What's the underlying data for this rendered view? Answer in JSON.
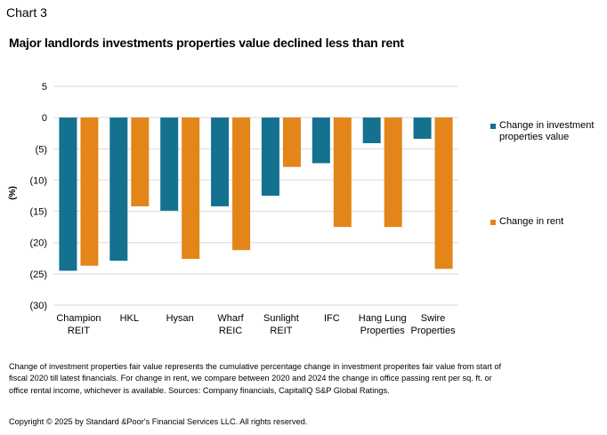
{
  "header": {
    "label": "Chart 3"
  },
  "chart_data": {
    "type": "bar",
    "title": "Major landlords investments properties value declined less than rent",
    "ylabel": "(%)",
    "xlabel": "",
    "ylim": [
      -30,
      5
    ],
    "yticks": [
      {
        "value": 5,
        "label": "5"
      },
      {
        "value": 0,
        "label": "0"
      },
      {
        "value": -5,
        "label": "(5)"
      },
      {
        "value": -10,
        "label": "(10)"
      },
      {
        "value": -15,
        "label": "(15)"
      },
      {
        "value": -20,
        "label": "(20)"
      },
      {
        "value": -25,
        "label": "(25)"
      },
      {
        "value": -30,
        "label": "(30)"
      }
    ],
    "grid": true,
    "legend_position": "right",
    "categories": [
      [
        "Champion",
        "REIT"
      ],
      [
        "HKL"
      ],
      [
        "Hysan"
      ],
      [
        "Wharf",
        "REIC"
      ],
      [
        "Sunlight",
        "REIT"
      ],
      [
        "IFC"
      ],
      [
        "Hang Lung",
        "Properties"
      ],
      [
        "Swire",
        "Properties"
      ]
    ],
    "series": [
      {
        "name": "Change in investment properties value",
        "color": "#14718F",
        "values": [
          -24.5,
          -22.9,
          -14.9,
          -14.2,
          -12.5,
          -7.3,
          -4.1,
          -3.4
        ]
      },
      {
        "name": "Change in rent",
        "color": "#E38518",
        "values": [
          -23.7,
          -14.2,
          -22.6,
          -21.2,
          -7.9,
          -17.5,
          -17.5,
          -24.2
        ]
      }
    ]
  },
  "legend": {
    "items": [
      {
        "label": "Change in investment properties value",
        "color": "#14718F"
      },
      {
        "label": "Change in rent",
        "color": "#E38518"
      }
    ]
  },
  "footnote": "Change of investment properties fair value represents the cumulative percentage change in investment properites fair value from start of fiscal 2020 till latest financials. For change in rent, we compare between 2020 and 2024 the change in office passing rent per sq. ft. or office rental income, whichever is available. Sources: Company financials, CapitalIQ S&P Global Ratings.",
  "copyright": "Copyright © 2025 by Standard &Poor's Financial Services LLC. All rights reserved."
}
